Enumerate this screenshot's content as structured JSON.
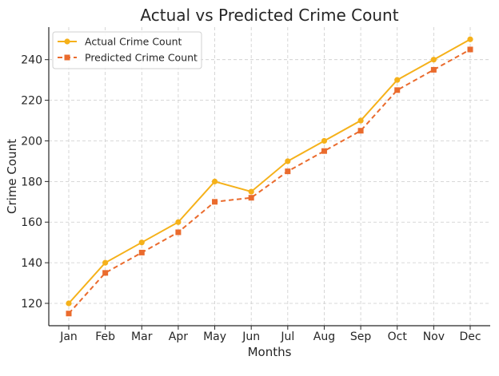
{
  "chart_data": {
    "type": "line",
    "title": "Actual vs Predicted Crime Count",
    "xlabel": "Months",
    "ylabel": "Crime Count",
    "categories": [
      "Jan",
      "Feb",
      "Mar",
      "Apr",
      "May",
      "Jun",
      "Jul",
      "Aug",
      "Sep",
      "Oct",
      "Nov",
      "Dec"
    ],
    "ylim": [
      109,
      256
    ],
    "yticks": [
      120,
      140,
      160,
      180,
      200,
      220,
      240
    ],
    "grid": true,
    "legend_position": "top-left",
    "series": [
      {
        "name": "Actual Crime Count",
        "values": [
          120,
          140,
          150,
          160,
          180,
          175,
          190,
          200,
          210,
          230,
          240,
          250
        ],
        "color": "#f5b11a",
        "line_style": "solid",
        "marker": "circle"
      },
      {
        "name": "Predicted Crime Count",
        "values": [
          115,
          135,
          145,
          155,
          170,
          172,
          185,
          195,
          205,
          225,
          235,
          245
        ],
        "color": "#ea6b2d",
        "line_style": "dashed",
        "marker": "square"
      }
    ]
  }
}
